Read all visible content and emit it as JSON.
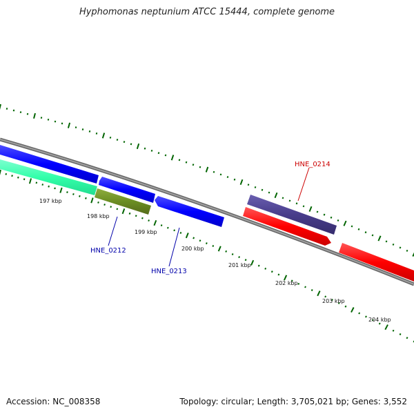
{
  "title": "Hyphomonas neptunium ATCC 15444, complete genome",
  "footer": {
    "accession": "Accession: NC_008358",
    "summary": "Topology: circular; Length: 3,705,021 bp; Genes: 3,552"
  },
  "scale_labels": [
    "197 kbp",
    "198 kbp",
    "199 kbp",
    "200 kbp",
    "201 kbp",
    "202 kbp",
    "203 kbp",
    "204 kbp"
  ],
  "gene_labels": [
    {
      "text": "HNE_0212",
      "color": "#0000aa"
    },
    {
      "text": "HNE_0213",
      "color": "#0000aa"
    },
    {
      "text": "HNE_0214",
      "color": "#cc0000"
    }
  ],
  "colors": {
    "backbone": "#808080",
    "blue_feature": "#0000ff",
    "cyan_feature": "#33ffaa",
    "olive_feature": "#6b8e23",
    "slate_feature": "#483d8b",
    "red_feature": "#ff0000",
    "tick": "#006400"
  }
}
